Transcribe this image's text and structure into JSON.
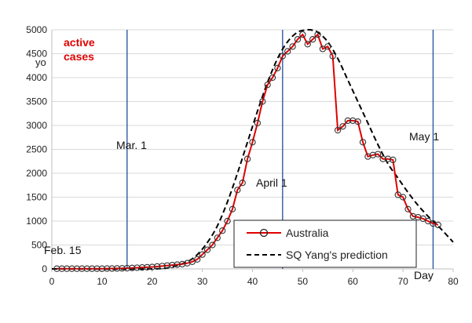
{
  "chart_data": {
    "type": "line",
    "xlim": [
      0,
      80
    ],
    "ylim": [
      0,
      5000
    ],
    "x_ticks": [
      "0",
      "10",
      "20",
      "30",
      "40",
      "50",
      "60",
      "70",
      "80"
    ],
    "y_ticks": [
      "0",
      "500",
      "1000",
      "1500",
      "2000",
      "2500",
      "3000",
      "3500",
      "4000",
      "4500",
      "5000"
    ],
    "xlabel": "Day",
    "ylabel_fragment": "yo",
    "grid": "horizontal",
    "legend_placement": "bottom-right",
    "colors": {
      "actual": "#e00000",
      "prediction": "#000000",
      "vlines": "#1f4e9c",
      "grid": "#d9d9d9"
    },
    "title": {
      "line1": "active",
      "line2": "cases"
    },
    "annotations": [
      {
        "text": "Feb. 15",
        "x": 1
      },
      {
        "text": "Mar. 1",
        "x": 15
      },
      {
        "text": "April 1",
        "x": 46
      },
      {
        "text": "May 1",
        "x": 76
      }
    ],
    "vertical_lines": [
      15,
      46,
      76
    ],
    "series": [
      {
        "name": "Australia",
        "style": "red-line-open-circles",
        "x": [
          1,
          2,
          3,
          4,
          5,
          6,
          7,
          8,
          9,
          10,
          11,
          12,
          13,
          14,
          15,
          16,
          17,
          18,
          19,
          20,
          21,
          22,
          23,
          24,
          25,
          26,
          27,
          28,
          29,
          30,
          31,
          32,
          33,
          34,
          35,
          36,
          37,
          38,
          39,
          40,
          41,
          42,
          43,
          44,
          45,
          46,
          47,
          48,
          49,
          50,
          51,
          52,
          53,
          54,
          55,
          56,
          57,
          58,
          59,
          60,
          61,
          62,
          63,
          64,
          65,
          66,
          67,
          68,
          69,
          70,
          71,
          72,
          73,
          74,
          75,
          76,
          77
        ],
        "y": [
          5,
          5,
          5,
          5,
          5,
          5,
          5,
          5,
          5,
          5,
          7,
          8,
          10,
          12,
          15,
          20,
          25,
          30,
          35,
          40,
          50,
          60,
          70,
          80,
          90,
          100,
          120,
          150,
          200,
          300,
          400,
          500,
          650,
          800,
          1000,
          1250,
          1650,
          1800,
          2300,
          2650,
          3050,
          3500,
          3850,
          4000,
          4200,
          4450,
          4550,
          4650,
          4800,
          4900,
          4700,
          4800,
          4900,
          4600,
          4650,
          4450,
          2900,
          2980,
          3100,
          3100,
          3080,
          2650,
          2350,
          2380,
          2400,
          2300,
          2300,
          2280,
          1550,
          1500,
          1250,
          1100,
          1080,
          1050,
          1000,
          950,
          920
        ]
      },
      {
        "name": "SQ Yang's prediction",
        "style": "black-dashed",
        "x": [
          0,
          20,
          24,
          27,
          29,
          31,
          33,
          35,
          37,
          39,
          41,
          43,
          45,
          47,
          49,
          51,
          52,
          53,
          55,
          57,
          59,
          61,
          63,
          65,
          67,
          69,
          71,
          73,
          75,
          77,
          80
        ],
        "y": [
          0,
          0,
          50,
          150,
          300,
          550,
          900,
          1400,
          2000,
          2650,
          3300,
          3900,
          4400,
          4750,
          4950,
          5000,
          4990,
          4950,
          4750,
          4400,
          3950,
          3500,
          3050,
          2600,
          2200,
          1900,
          1600,
          1330,
          1100,
          900,
          560
        ]
      }
    ]
  }
}
